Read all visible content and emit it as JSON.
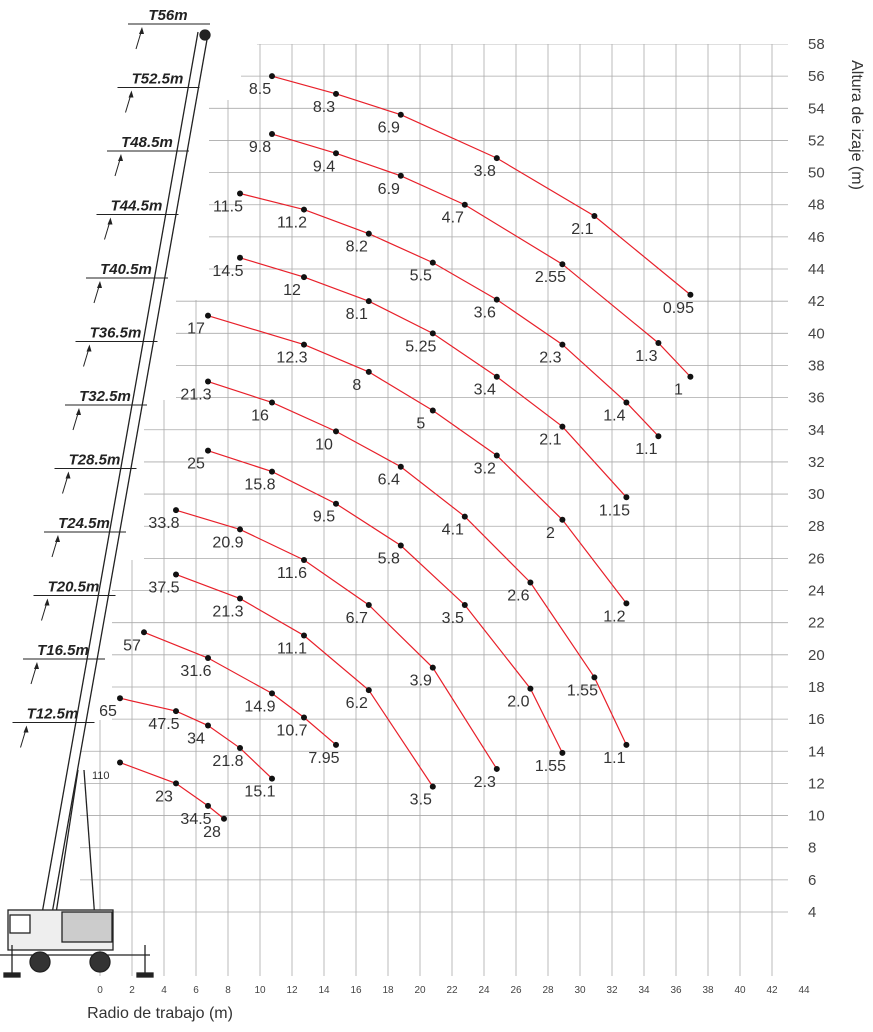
{
  "chart_data": {
    "type": "line",
    "x_label": "Radio de trabajo (m)",
    "y_label": "Altura de izaje (m)",
    "xlim": [
      0,
      44
    ],
    "ylim": [
      4,
      58
    ],
    "xticks": [
      0,
      2,
      4,
      6,
      8,
      10,
      12,
      14,
      16,
      18,
      20,
      22,
      24,
      26,
      28,
      30,
      32,
      34,
      36,
      38,
      40,
      42,
      44
    ],
    "yticks": [
      4,
      6,
      8,
      10,
      12,
      14,
      16,
      18,
      20,
      22,
      24,
      26,
      28,
      30,
      32,
      34,
      36,
      38,
      40,
      42,
      44,
      46,
      48,
      50,
      52,
      54,
      56,
      58
    ],
    "grid": true,
    "annotation": "110",
    "series": [
      {
        "name": "T56m",
        "color": "#e8202a",
        "x": [
          10.75,
          14.75,
          18.8,
          24.8,
          30.9,
          36.9
        ],
        "values": [
          56.0,
          54.9,
          53.6,
          50.9,
          47.3,
          42.4
        ],
        "loads": [
          8.5,
          8.3,
          6.9,
          3.8,
          2.1,
          0.95
        ]
      },
      {
        "name": "T52.5m",
        "color": "#e8202a",
        "x": [
          10.75,
          14.75,
          18.8,
          22.8,
          28.9,
          34.9,
          36.9
        ],
        "values": [
          52.4,
          51.2,
          49.8,
          48.0,
          44.3,
          39.4,
          37.3
        ],
        "loads": [
          9.8,
          9.4,
          6.9,
          4.7,
          2.55,
          1.3,
          1
        ]
      },
      {
        "name": "T48.5m",
        "color": "#e8202a",
        "x": [
          8.75,
          12.75,
          16.8,
          20.8,
          24.8,
          28.9,
          32.9,
          34.9
        ],
        "values": [
          48.7,
          47.7,
          46.2,
          44.4,
          42.1,
          39.3,
          35.7,
          33.6
        ],
        "loads": [
          11.5,
          11.2,
          8.2,
          5.5,
          3.6,
          2.3,
          1.4,
          1.1
        ]
      },
      {
        "name": "T44.5m",
        "color": "#e8202a",
        "x": [
          8.75,
          12.75,
          16.8,
          20.8,
          24.8,
          28.9,
          32.9
        ],
        "values": [
          44.7,
          43.5,
          42.0,
          40.0,
          37.3,
          34.2,
          29.8
        ],
        "loads": [
          14.5,
          12,
          8.1,
          5.25,
          3.4,
          2.1,
          1.15
        ]
      },
      {
        "name": "T40.5m",
        "color": "#e8202a",
        "x": [
          6.75,
          12.75,
          16.8,
          20.8,
          24.8,
          28.9,
          32.9
        ],
        "values": [
          41.1,
          39.3,
          37.6,
          35.2,
          32.4,
          28.4,
          23.2
        ],
        "loads": [
          17,
          12.3,
          8,
          5,
          3.2,
          2,
          1.2
        ]
      },
      {
        "name": "T36.5m",
        "color": "#e8202a",
        "x": [
          6.75,
          10.75,
          14.75,
          18.8,
          22.8,
          26.9,
          30.9,
          32.9
        ],
        "values": [
          37.0,
          35.7,
          33.9,
          31.7,
          28.6,
          24.5,
          18.6,
          14.4
        ],
        "loads": [
          21.3,
          16,
          10,
          6.4,
          4.1,
          2.6,
          1.55,
          1.1
        ]
      },
      {
        "name": "T32.5m",
        "color": "#e8202a",
        "x": [
          6.75,
          10.75,
          14.75,
          18.8,
          22.8,
          26.9,
          28.9
        ],
        "values": [
          32.7,
          31.4,
          29.4,
          26.8,
          23.1,
          17.9,
          13.9
        ],
        "loads": [
          25,
          15.8,
          9.5,
          5.8,
          3.5,
          {
            "value": 2,
            "label": "2.0"
          },
          1.55
        ]
      },
      {
        "name": "T28.5m",
        "color": "#e8202a",
        "x": [
          4.75,
          8.75,
          12.75,
          16.8,
          20.8,
          24.8
        ],
        "values": [
          29.0,
          27.8,
          25.9,
          23.1,
          19.2,
          12.9
        ],
        "loads": [
          33.8,
          20.9,
          11.6,
          6.7,
          3.9,
          2.3
        ]
      },
      {
        "name": "T24.5m",
        "color": "#e8202a",
        "x": [
          4.75,
          8.75,
          12.75,
          16.8,
          20.8
        ],
        "values": [
          25.0,
          23.5,
          21.2,
          17.8,
          11.8
        ],
        "loads": [
          37.5,
          21.3,
          11.1,
          6.2,
          3.5
        ]
      },
      {
        "name": "T20.5m",
        "color": "#e8202a",
        "x": [
          2.75,
          6.75,
          10.75,
          12.75,
          14.75
        ],
        "values": [
          21.4,
          19.8,
          17.6,
          16.1,
          14.4
        ],
        "loads": [
          57,
          31.6,
          14.9,
          10.7,
          7.95
        ]
      },
      {
        "name": "T16.5m",
        "color": "#e8202a",
        "x": [
          1.25,
          4.75,
          6.75,
          8.75,
          10.75
        ],
        "values": [
          17.3,
          16.5,
          15.6,
          14.2,
          12.3
        ],
        "loads": [
          65,
          47.5,
          34,
          21.8,
          15.1
        ]
      },
      {
        "name": "T12.5m",
        "color": "#e8202a",
        "x": [
          1.25,
          4.75,
          6.75,
          7.75
        ],
        "values": [
          13.3,
          12.0,
          10.6,
          9.8
        ],
        "loads": [
          null,
          23,
          34.5,
          28
        ]
      }
    ]
  }
}
